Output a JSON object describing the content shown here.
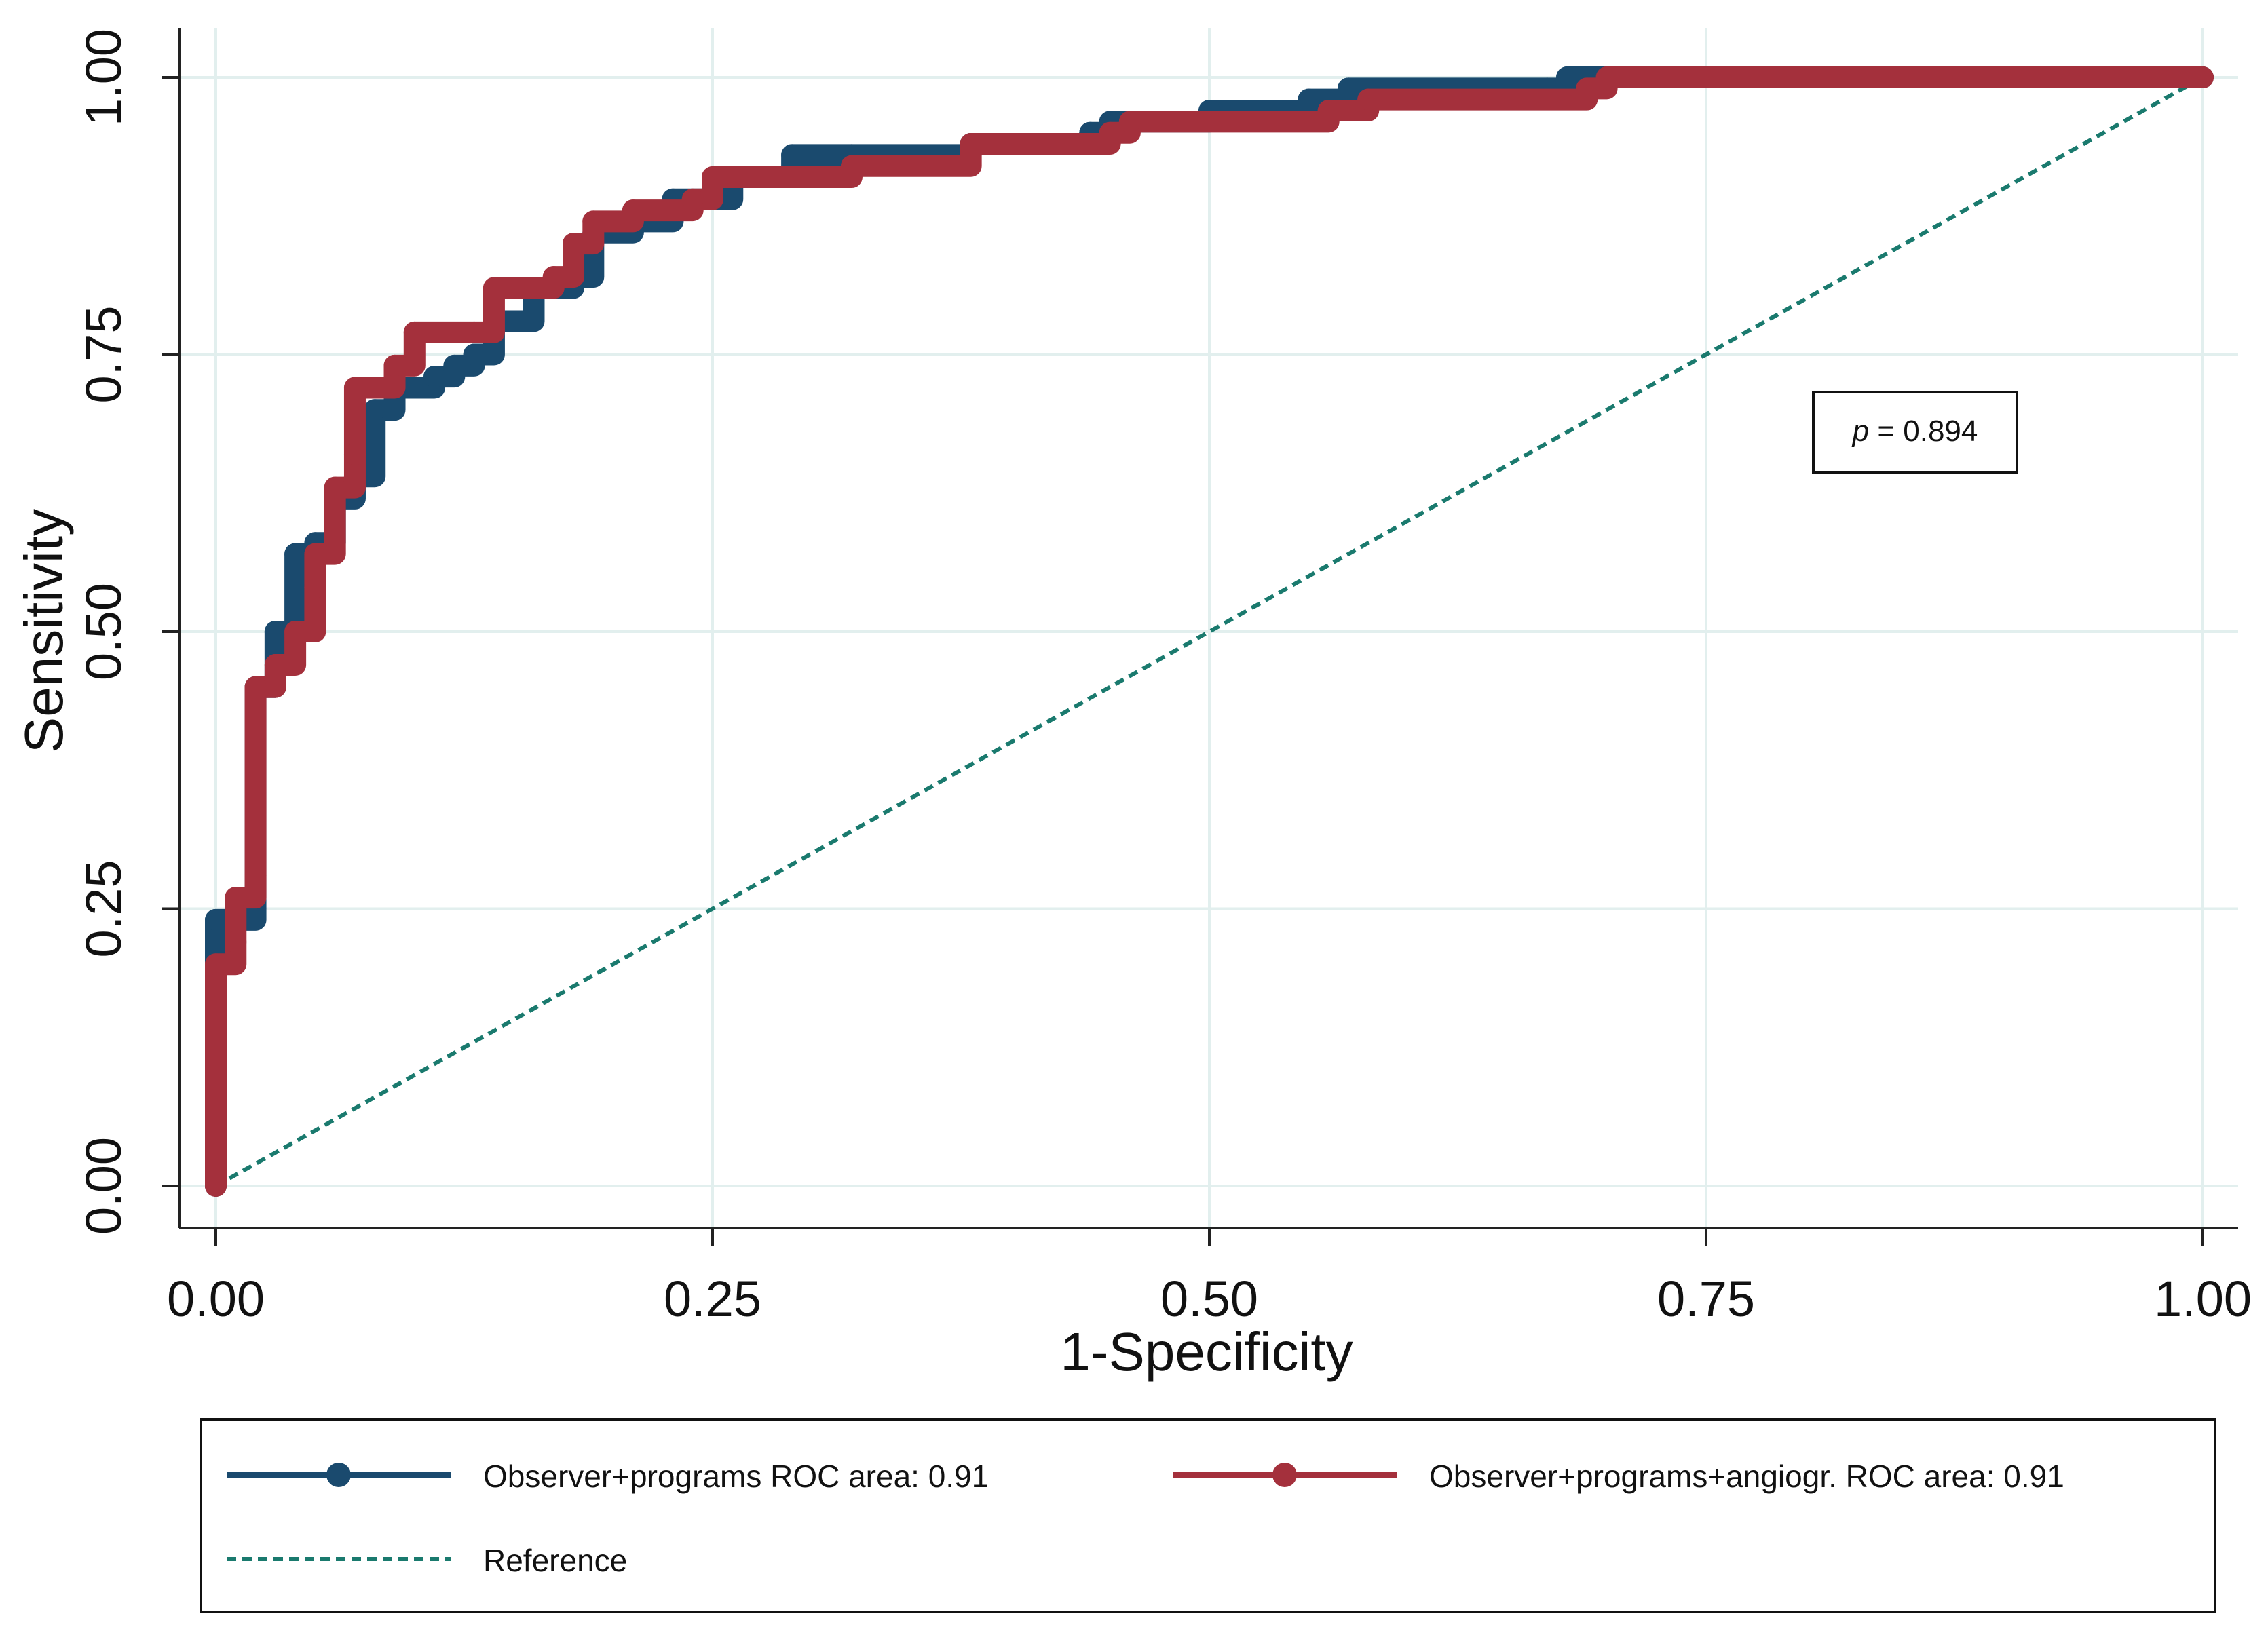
{
  "chart_data": {
    "type": "line",
    "title": "",
    "xlabel": "1-Specificity",
    "ylabel": "Sensitivity",
    "xlim": [
      0,
      1
    ],
    "ylim": [
      0,
      1
    ],
    "grid": true,
    "x_ticks": [
      "0.00",
      "0.25",
      "0.50",
      "0.75",
      "1.00"
    ],
    "y_ticks": [
      "0.00",
      "0.25",
      "0.50",
      "0.75",
      "1.00"
    ],
    "annotation": {
      "italic": "p",
      "text": " = 0.894"
    },
    "legend_position": "bottom",
    "series": [
      {
        "name": "Observer+programs ROC area: 0.91",
        "color": "#1a4a6e",
        "style": "line-marker",
        "points": [
          [
            0,
            0
          ],
          [
            0,
            0.24
          ],
          [
            0.02,
            0.25
          ],
          [
            0.02,
            0.45
          ],
          [
            0.03,
            0.5
          ],
          [
            0.04,
            0.57
          ],
          [
            0.05,
            0.58
          ],
          [
            0.06,
            0.62
          ],
          [
            0.07,
            0.64
          ],
          [
            0.08,
            0.7
          ],
          [
            0.09,
            0.72
          ],
          [
            0.11,
            0.73
          ],
          [
            0.12,
            0.74
          ],
          [
            0.13,
            0.75
          ],
          [
            0.14,
            0.78
          ],
          [
            0.16,
            0.81
          ],
          [
            0.18,
            0.82
          ],
          [
            0.19,
            0.86
          ],
          [
            0.21,
            0.87
          ],
          [
            0.23,
            0.89
          ],
          [
            0.26,
            0.91
          ],
          [
            0.29,
            0.93
          ],
          [
            0.32,
            0.93
          ],
          [
            0.38,
            0.94
          ],
          [
            0.44,
            0.95
          ],
          [
            0.45,
            0.96
          ],
          [
            0.5,
            0.97
          ],
          [
            0.55,
            0.98
          ],
          [
            0.57,
            0.99
          ],
          [
            0.67,
            0.99
          ],
          [
            0.68,
            1.0
          ],
          [
            1,
            1
          ]
        ]
      },
      {
        "name": "Observer+programs+angiogr. ROC area: 0.91",
        "color": "#a4303c",
        "style": "line-marker",
        "points": [
          [
            0,
            0
          ],
          [
            0,
            0.2
          ],
          [
            0.01,
            0.22
          ],
          [
            0.01,
            0.26
          ],
          [
            0.02,
            0.28
          ],
          [
            0.02,
            0.45
          ],
          [
            0.03,
            0.47
          ],
          [
            0.04,
            0.5
          ],
          [
            0.05,
            0.54
          ],
          [
            0.05,
            0.57
          ],
          [
            0.06,
            0.63
          ],
          [
            0.07,
            0.66
          ],
          [
            0.07,
            0.72
          ],
          [
            0.09,
            0.74
          ],
          [
            0.1,
            0.77
          ],
          [
            0.13,
            0.77
          ],
          [
            0.14,
            0.81
          ],
          [
            0.17,
            0.82
          ],
          [
            0.18,
            0.85
          ],
          [
            0.19,
            0.87
          ],
          [
            0.21,
            0.88
          ],
          [
            0.24,
            0.89
          ],
          [
            0.25,
            0.91
          ],
          [
            0.32,
            0.92
          ],
          [
            0.38,
            0.94
          ],
          [
            0.45,
            0.95
          ],
          [
            0.46,
            0.96
          ],
          [
            0.56,
            0.97
          ],
          [
            0.58,
            0.98
          ],
          [
            0.69,
            0.99
          ],
          [
            0.7,
            1.0
          ],
          [
            1,
            1
          ]
        ]
      },
      {
        "name": "Reference",
        "color": "#1a7a6e",
        "style": "dashed",
        "points": [
          [
            0,
            0
          ],
          [
            1,
            1
          ]
        ]
      }
    ]
  }
}
